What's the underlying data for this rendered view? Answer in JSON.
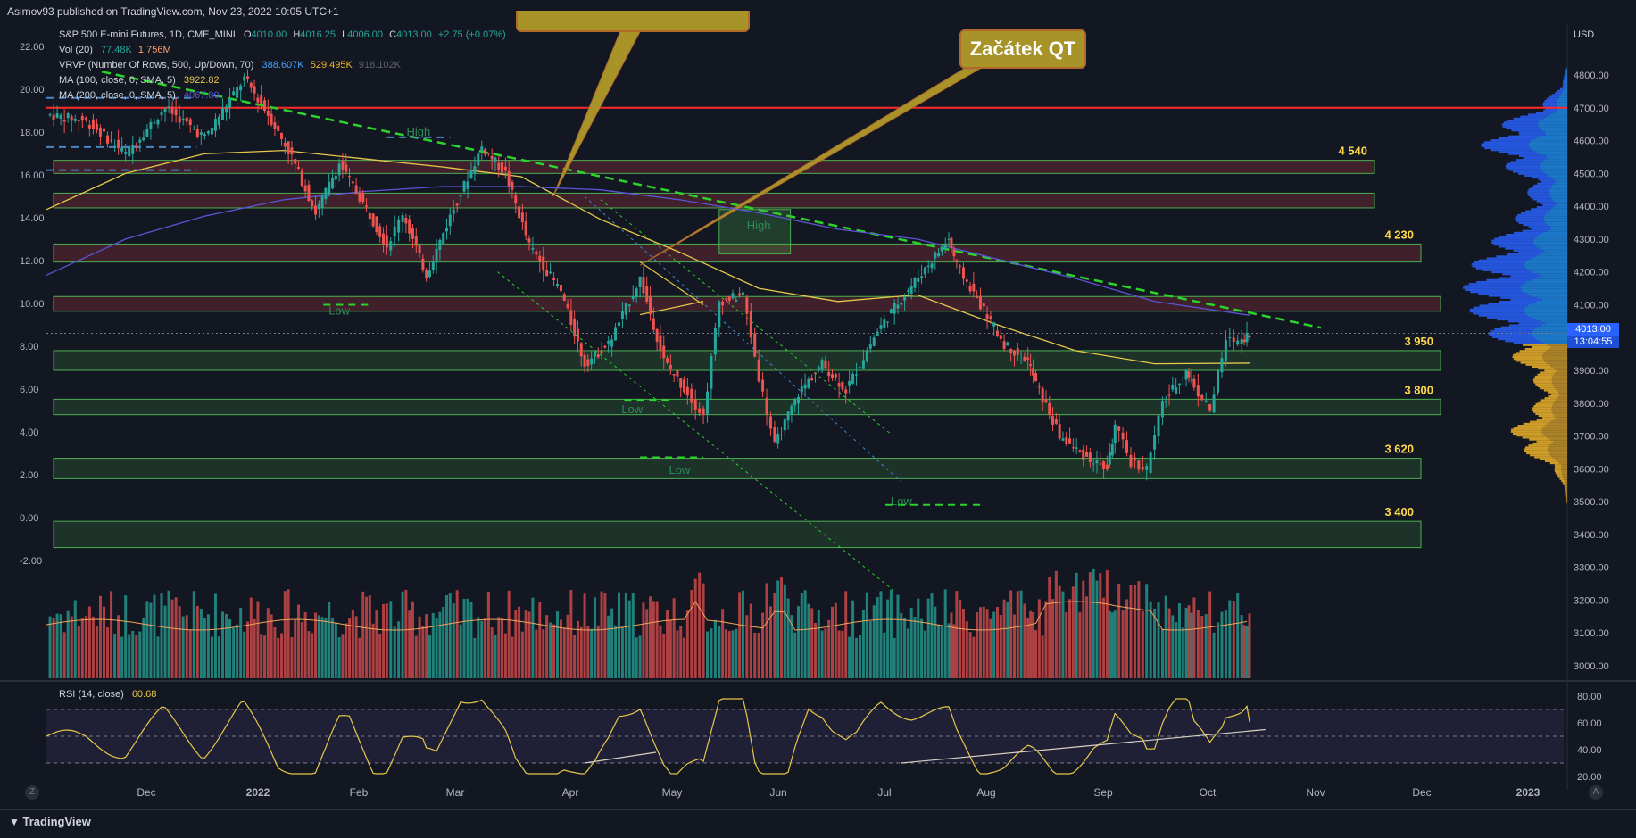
{
  "header": {
    "publisher": "Asimov93 published on TradingView.com, Nov 23, 2022 10:05 UTC+1"
  },
  "legend": {
    "symbol": "S&P 500 E-mini Futures, 1D, CME_MINI",
    "open_label": "O",
    "open": "4010.00",
    "high_label": "H",
    "high": "4016.25",
    "low_label": "L",
    "low": "4006.00",
    "close_label": "C",
    "close": "4013.00",
    "change": "+2.75 (+0.07%)",
    "vol_label": "Vol (20)",
    "vol_1": "77.48K",
    "vol_2": "1.756M",
    "vrvp_label": "VRVP (Number Of Rows, 500, Up/Down, 70)",
    "vrvp_1": "388.607K",
    "vrvp_2": "529.495K",
    "vrvp_3": "918.102K",
    "ma100_label": "MA (100, close, 0, SMA, 5)",
    "ma100": "3922.82",
    "ma200_label": "MA (200, close, 0, SMA, 5)",
    "ma200": "4067.80",
    "rsi_label": "RSI (14, close)",
    "rsi": "60.68"
  },
  "annotation": {
    "text": "Začátek QT"
  },
  "price_tag": {
    "price": "4013.00",
    "countdown": "13:04:55"
  },
  "currency": "USD",
  "footer": {
    "brand": "TradingView",
    "corner_left": "Z",
    "corner_right": "A"
  },
  "colors": {
    "background": "#131722",
    "up": "#26a69a",
    "down": "#ef5350",
    "ma100": "#e6c84a",
    "ma200": "#5b54d6",
    "zone_green": "#4caf50",
    "zone_red": "#e0454f",
    "resistance": "#ff2a2a",
    "trend": "#2bd42b",
    "label_yellow": "#ffd84a"
  },
  "chart_data": {
    "type": "candlestick",
    "title": "S&P 500 E-mini Futures, 1D, CME_MINI",
    "x_tick_labels": [
      "Dec",
      "2022",
      "Feb",
      "Mar",
      "Apr",
      "May",
      "Jun",
      "Jul",
      "Aug",
      "Sep",
      "Oct",
      "Nov",
      "Dec",
      "2023"
    ],
    "right_axis_ticks": [
      "4800.00",
      "4700.00",
      "4600.00",
      "4500.00",
      "4400.00",
      "4300.00",
      "4200.00",
      "4100.00",
      "4000.00",
      "3900.00",
      "3800.00",
      "3700.00",
      "3600.00",
      "3500.00",
      "3400.00",
      "3300.00",
      "3200.00",
      "3100.00",
      "3000.00"
    ],
    "left_axis_ticks": [
      "22.00",
      "20.00",
      "18.00",
      "16.00",
      "14.00",
      "12.00",
      "10.00",
      "8.00",
      "6.00",
      "4.00",
      "2.00",
      "0.00",
      "-2.00"
    ],
    "rsi_axis_ticks": [
      "80.00",
      "60.00",
      "40.00",
      "20.00"
    ],
    "ylim": [
      2900,
      4850
    ],
    "last_price": 4013.0,
    "price_path": [
      {
        "m": 10.5,
        "p": 4680
      },
      {
        "m": 11.0,
        "p": 4660
      },
      {
        "m": 11.5,
        "p": 4560
      },
      {
        "m": 12.0,
        "p": 4700
      },
      {
        "m": 12.5,
        "p": 4610
      },
      {
        "m": 13.0,
        "p": 4790
      },
      {
        "m": 13.3,
        "p": 4680
      },
      {
        "m": 13.6,
        "p": 4550
      },
      {
        "m": 13.9,
        "p": 4380
      },
      {
        "m": 14.2,
        "p": 4530
      },
      {
        "m": 14.5,
        "p": 4410
      },
      {
        "m": 14.8,
        "p": 4280
      },
      {
        "m": 15.0,
        "p": 4380
      },
      {
        "m": 15.3,
        "p": 4190
      },
      {
        "m": 15.6,
        "p": 4370
      },
      {
        "m": 16.0,
        "p": 4580
      },
      {
        "m": 16.3,
        "p": 4500
      },
      {
        "m": 16.6,
        "p": 4280
      },
      {
        "m": 17.0,
        "p": 4140
      },
      {
        "m": 17.3,
        "p": 3920
      },
      {
        "m": 17.6,
        "p": 3980
      },
      {
        "m": 18.0,
        "p": 4180
      },
      {
        "m": 18.3,
        "p": 3930
      },
      {
        "m": 18.6,
        "p": 3830
      },
      {
        "m": 18.8,
        "p": 3760
      },
      {
        "m": 19.0,
        "p": 4110
      },
      {
        "m": 19.3,
        "p": 4130
      },
      {
        "m": 19.5,
        "p": 3880
      },
      {
        "m": 19.7,
        "p": 3670
      },
      {
        "m": 20.0,
        "p": 3830
      },
      {
        "m": 20.3,
        "p": 3920
      },
      {
        "m": 20.6,
        "p": 3840
      },
      {
        "m": 21.0,
        "p": 4020
      },
      {
        "m": 21.3,
        "p": 4120
      },
      {
        "m": 21.6,
        "p": 4210
      },
      {
        "m": 21.9,
        "p": 4300
      },
      {
        "m": 22.0,
        "p": 4220
      },
      {
        "m": 22.3,
        "p": 4100
      },
      {
        "m": 22.6,
        "p": 3980
      },
      {
        "m": 22.9,
        "p": 3930
      },
      {
        "m": 23.0,
        "p": 3860
      },
      {
        "m": 23.3,
        "p": 3700
      },
      {
        "m": 23.6,
        "p": 3640
      },
      {
        "m": 23.9,
        "p": 3600
      },
      {
        "m": 24.0,
        "p": 3730
      },
      {
        "m": 24.2,
        "p": 3620
      },
      {
        "m": 24.4,
        "p": 3600
      },
      {
        "m": 24.6,
        "p": 3800
      },
      {
        "m": 24.9,
        "p": 3900
      },
      {
        "m": 25.0,
        "p": 3850
      },
      {
        "m": 25.2,
        "p": 3780
      },
      {
        "m": 25.4,
        "p": 3990
      },
      {
        "m": 25.6,
        "p": 3995
      },
      {
        "m": 25.7,
        "p": 4013
      }
    ],
    "month_axis_note": "months counted from Jan 2021 (m=12 is Jan 2022)",
    "ma100_path": [
      {
        "m": 10.5,
        "p": 4390
      },
      {
        "m": 11.5,
        "p": 4500
      },
      {
        "m": 12.5,
        "p": 4560
      },
      {
        "m": 13.5,
        "p": 4570
      },
      {
        "m": 14.5,
        "p": 4545
      },
      {
        "m": 15.5,
        "p": 4520
      },
      {
        "m": 16.5,
        "p": 4490
      },
      {
        "m": 17.5,
        "p": 4360
      },
      {
        "m": 18.5,
        "p": 4260
      },
      {
        "m": 19.5,
        "p": 4150
      },
      {
        "m": 20.5,
        "p": 4110
      },
      {
        "m": 21.5,
        "p": 4130
      },
      {
        "m": 22.5,
        "p": 4040
      },
      {
        "m": 23.5,
        "p": 3960
      },
      {
        "m": 24.5,
        "p": 3920
      },
      {
        "m": 25.7,
        "p": 3922
      }
    ],
    "ma200_path": [
      {
        "m": 10.5,
        "p": 4190
      },
      {
        "m": 11.5,
        "p": 4300
      },
      {
        "m": 12.5,
        "p": 4370
      },
      {
        "m": 13.5,
        "p": 4420
      },
      {
        "m": 14.5,
        "p": 4445
      },
      {
        "m": 15.5,
        "p": 4460
      },
      {
        "m": 16.5,
        "p": 4460
      },
      {
        "m": 17.5,
        "p": 4450
      },
      {
        "m": 18.5,
        "p": 4420
      },
      {
        "m": 19.5,
        "p": 4380
      },
      {
        "m": 20.5,
        "p": 4330
      },
      {
        "m": 21.5,
        "p": 4300
      },
      {
        "m": 22.5,
        "p": 4240
      },
      {
        "m": 23.5,
        "p": 4180
      },
      {
        "m": 24.5,
        "p": 4110
      },
      {
        "m": 25.7,
        "p": 4068
      }
    ],
    "zones": [
      {
        "low": 4500,
        "high": 4540,
        "kind": "resistance",
        "label": "4 540"
      },
      {
        "low": 4395,
        "high": 4440,
        "kind": "resistance",
        "label": ""
      },
      {
        "low": 4230,
        "high": 4285,
        "kind": "resistance",
        "label": "4 230"
      },
      {
        "low": 4080,
        "high": 4125,
        "kind": "resistance",
        "label": ""
      },
      {
        "low": 3900,
        "high": 3960,
        "kind": "support",
        "label": "3 950"
      },
      {
        "low": 3765,
        "high": 3812,
        "kind": "support",
        "label": "3 800"
      },
      {
        "low": 3570,
        "high": 3632,
        "kind": "support",
        "label": "3 620"
      },
      {
        "low": 3360,
        "high": 3440,
        "kind": "support",
        "label": "3 400"
      }
    ],
    "horizontal_resistance": 4700,
    "point_labels": [
      {
        "text": "High",
        "m": 15.2,
        "p": 4615
      },
      {
        "text": "Low",
        "m": 14.2,
        "p": 4070
      },
      {
        "text": "Low",
        "m": 17.9,
        "p": 3770
      },
      {
        "text": "Low",
        "m": 18.5,
        "p": 3585
      },
      {
        "text": "High",
        "m": 19.5,
        "p": 4330
      },
      {
        "text": "Low",
        "m": 21.3,
        "p": 3490
      }
    ],
    "volume": {
      "max": 3.4,
      "label": "Vol (20)"
    },
    "rsi": {
      "last": 60.68,
      "upper": 70,
      "lower": 30,
      "ylim": [
        20,
        80
      ]
    }
  }
}
